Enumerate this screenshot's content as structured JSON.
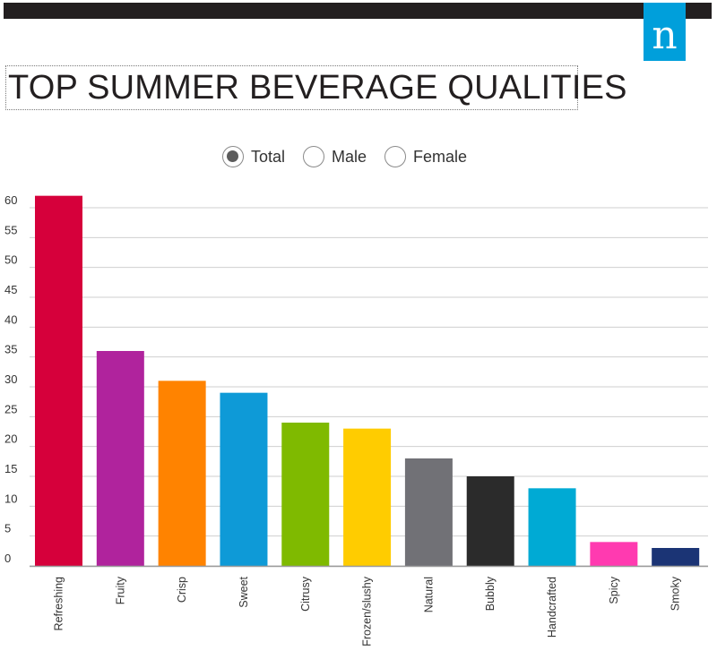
{
  "header": {
    "brand_glyph": "n",
    "brand_color": "#009fdb",
    "bar_color": "#231f20"
  },
  "title": "TOP SUMMER BEVERAGE QUALITIES",
  "filter": {
    "options": [
      "Total",
      "Male",
      "Female"
    ],
    "selected": "Total"
  },
  "chart_data": {
    "type": "bar",
    "title": "TOP SUMMER BEVERAGE QUALITIES",
    "xlabel": "",
    "ylabel": "",
    "ylim": [
      0,
      60
    ],
    "yticks": [
      0,
      5,
      10,
      15,
      20,
      25,
      30,
      35,
      40,
      45,
      50,
      55,
      60
    ],
    "grid": true,
    "categories": [
      "Refreshing",
      "Fruity",
      "Crisp",
      "Sweet",
      "Citrusy",
      "Frozen/slushy",
      "Natural",
      "Bubbly",
      "Handcrafted",
      "Spicy",
      "Smoky"
    ],
    "values": [
      62,
      36,
      31,
      29,
      24,
      23,
      18,
      15,
      13,
      4,
      3
    ],
    "colors": [
      "#d6003b",
      "#b0239d",
      "#ff8300",
      "#0e9ad7",
      "#7fba00",
      "#ffcc00",
      "#717176",
      "#2b2b2b",
      "#00aad4",
      "#ff3ab0",
      "#1b3475"
    ]
  }
}
